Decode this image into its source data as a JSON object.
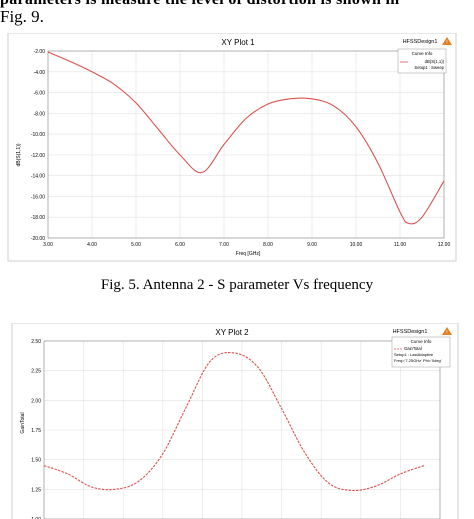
{
  "page": {
    "top_line": "parameters is measure the level of distortion is shown in",
    "top_line2": "Fig. 9.",
    "caption": "Fig. 5. Antenna 2 - S parameter Vs frequency"
  },
  "chart_data": [
    {
      "type": "line",
      "title": "XY Plot 1",
      "design_label": "HFSSDesign1",
      "legend_title": "Curve Info",
      "xlabel": "Freq [GHz]",
      "ylabel": "dB(S(1,1))",
      "xlim": [
        3.0,
        12.0
      ],
      "ylim": [
        -20.0,
        -2.0
      ],
      "x_ticks": [
        "3.00",
        "4.00",
        "5.00",
        "6.00",
        "7.00",
        "8.00",
        "9.00",
        "10.00",
        "11.00",
        "12.00"
      ],
      "y_ticks": [
        "-2.00",
        "-4.00",
        "-6.00",
        "-8.00",
        "-10.00",
        "-12.00",
        "-14.00",
        "-16.00",
        "-18.00",
        "-20.00"
      ],
      "grid": true,
      "legend_position": "top-right",
      "series": [
        {
          "name": "dB(S(1,1))",
          "sub": "Setup1 : Sweep",
          "color": "#d9534f",
          "x": [
            3.0,
            3.5,
            4.0,
            4.5,
            5.0,
            5.5,
            6.0,
            6.5,
            7.0,
            7.5,
            8.0,
            8.5,
            9.0,
            9.5,
            10.0,
            10.5,
            11.0,
            11.2,
            11.5,
            12.0
          ],
          "y": [
            -2.1,
            -3.0,
            -4.0,
            -5.2,
            -7.0,
            -9.5,
            -12.0,
            -13.7,
            -11.0,
            -8.5,
            -7.1,
            -6.6,
            -6.6,
            -7.3,
            -9.3,
            -12.8,
            -17.5,
            -18.6,
            -18.0,
            -14.5
          ]
        }
      ]
    },
    {
      "type": "line",
      "title": "XY Plot 2",
      "design_label": "HFSSDesign1",
      "legend_title": "Curve Info",
      "ylabel": "GainTotal",
      "ylim": [
        1.0,
        2.5
      ],
      "y_ticks": [
        "2.50",
        "2.25",
        "2.00",
        "1.75",
        "1.50",
        "1.25",
        "1.00"
      ],
      "grid": true,
      "legend_position": "top-right",
      "series": [
        {
          "name": "GainTotal",
          "sub": "Setup1 : LastAdaptive",
          "sub2": "Freq='7.25GHz' Phi='0deg'",
          "color": "#d9534f",
          "x": [
            0,
            0.06,
            0.12,
            0.18,
            0.24,
            0.3,
            0.36,
            0.42,
            0.48,
            0.54,
            0.6,
            0.66,
            0.72,
            0.78,
            0.84,
            0.9,
            0.96
          ],
          "y": [
            1.45,
            1.38,
            1.27,
            1.25,
            1.32,
            1.55,
            1.95,
            2.33,
            2.4,
            2.28,
            1.93,
            1.55,
            1.3,
            1.24,
            1.28,
            1.38,
            1.45
          ]
        }
      ]
    }
  ]
}
